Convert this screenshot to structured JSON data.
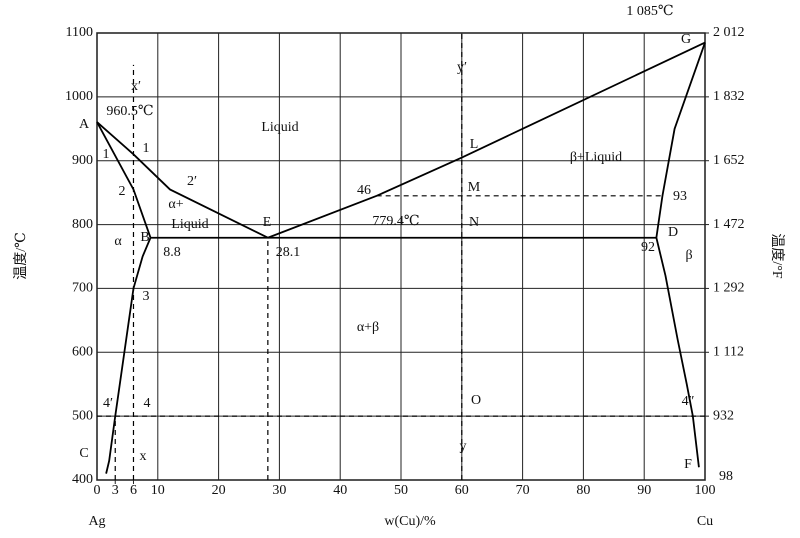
{
  "chart_data": {
    "type": "phase-diagram",
    "x_label": "w(Cu)/%",
    "y_label": "温度/℃",
    "y2_label": "温度/°F",
    "left_end_label": "Ag",
    "right_end_label": "Cu",
    "xlim": [
      0,
      100
    ],
    "xticks": [
      0,
      3,
      6,
      10,
      20,
      30,
      40,
      50,
      60,
      70,
      80,
      90,
      100
    ],
    "ylim": [
      400,
      1100
    ],
    "yticks": [
      400,
      500,
      600,
      700,
      800,
      900,
      1000,
      1100
    ],
    "y2lim": [
      752,
      2012
    ],
    "y2ticks": [
      {
        "value": 2012,
        "label": "2 012"
      },
      {
        "value": 1832,
        "label": "1 832"
      },
      {
        "value": 1652,
        "label": "1 652"
      },
      {
        "value": 1472,
        "label": "1 472"
      },
      {
        "value": 1292,
        "label": "1 292"
      },
      {
        "value": 1112,
        "label": "1 112"
      },
      932
    ],
    "grid": true,
    "series": [
      {
        "color": "#000",
        "style": "solid",
        "x": [
          0,
          6,
          12,
          28.1
        ],
        "values": [
          960.5,
          910,
          855,
          779.4
        ]
      },
      {
        "color": "#000",
        "style": "solid",
        "x": [
          28.1,
          46,
          60,
          100
        ],
        "values": [
          779.4,
          845,
          905,
          1085
        ]
      },
      {
        "color": "#000",
        "style": "solid",
        "x": [
          0,
          6,
          8.8
        ],
        "values": [
          960.5,
          855,
          779.4
        ]
      },
      {
        "color": "#000",
        "style": "solid",
        "x": [
          8.8,
          7.5,
          6,
          4.5,
          3,
          2,
          1.5
        ],
        "values": [
          779.4,
          750,
          700,
          600,
          500,
          430,
          410
        ]
      },
      {
        "color": "#000",
        "style": "solid",
        "x": [
          8.8,
          92
        ],
        "values": [
          779.4,
          779.4
        ]
      },
      {
        "color": "#000",
        "style": "solid",
        "x": [
          92,
          93,
          95,
          100
        ],
        "values": [
          779.4,
          845,
          950,
          1085
        ]
      },
      {
        "color": "#000",
        "style": "solid",
        "x": [
          92,
          93.5,
          95.5,
          97,
          98,
          99
        ],
        "values": [
          779.4,
          720,
          620,
          550,
          500,
          420
        ]
      },
      {
        "color": "#000",
        "style": "dashed",
        "x": [
          6,
          6
        ],
        "values": [
          400,
          1050
        ]
      },
      {
        "color": "#000",
        "style": "dashed",
        "x": [
          60,
          60
        ],
        "values": [
          400,
          1100
        ]
      },
      {
        "color": "#000",
        "style": "dashed",
        "x": [
          46,
          93
        ],
        "values": [
          845,
          845
        ]
      },
      {
        "color": "#000",
        "style": "dashed",
        "x": [
          0,
          100
        ],
        "values": [
          500,
          500
        ]
      },
      {
        "color": "#000",
        "style": "dashed",
        "x": [
          28.1,
          28.1
        ],
        "values": [
          400,
          779.4
        ]
      },
      {
        "color": "#000",
        "style": "dashed",
        "x": [
          3,
          3
        ],
        "values": [
          400,
          500
        ]
      }
    ],
    "annotations": [
      "960.5℃",
      "A",
      "x′",
      "1",
      "1",
      "2",
      "2′",
      "α+",
      "Liquid",
      "Liquid",
      "B",
      "8.8",
      "α",
      "E",
      "28.1",
      "779.4℃",
      "N",
      "46",
      "M",
      "L",
      "β+Liquid",
      "y′",
      "G",
      "1 085℃",
      "93",
      "D",
      "92",
      "β",
      "3",
      "α+β",
      "4′",
      "4",
      "O",
      "C",
      "x",
      "y",
      "4″",
      "F",
      "98"
    ]
  }
}
